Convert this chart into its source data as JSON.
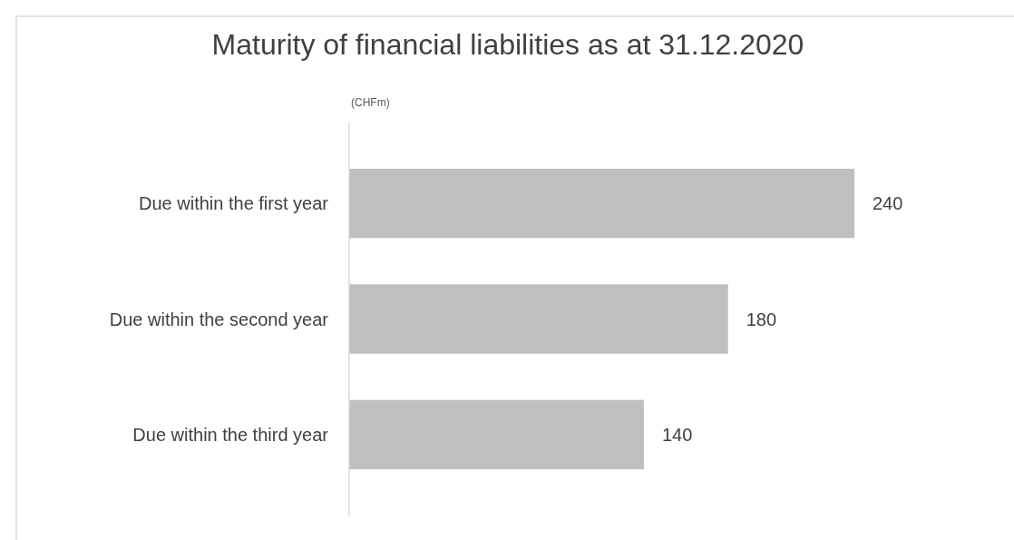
{
  "chart_data": {
    "type": "bar",
    "orientation": "horizontal",
    "title": "Maturity of financial liabilities as at 31.12.2020",
    "categories": [
      "Due within the first year",
      "Due within the second year",
      "Due within the third year"
    ],
    "values": [
      240,
      180,
      140
    ],
    "color": "#bfbfbf",
    "data_labels": true,
    "annotations": [
      "(CHFm)"
    ]
  }
}
